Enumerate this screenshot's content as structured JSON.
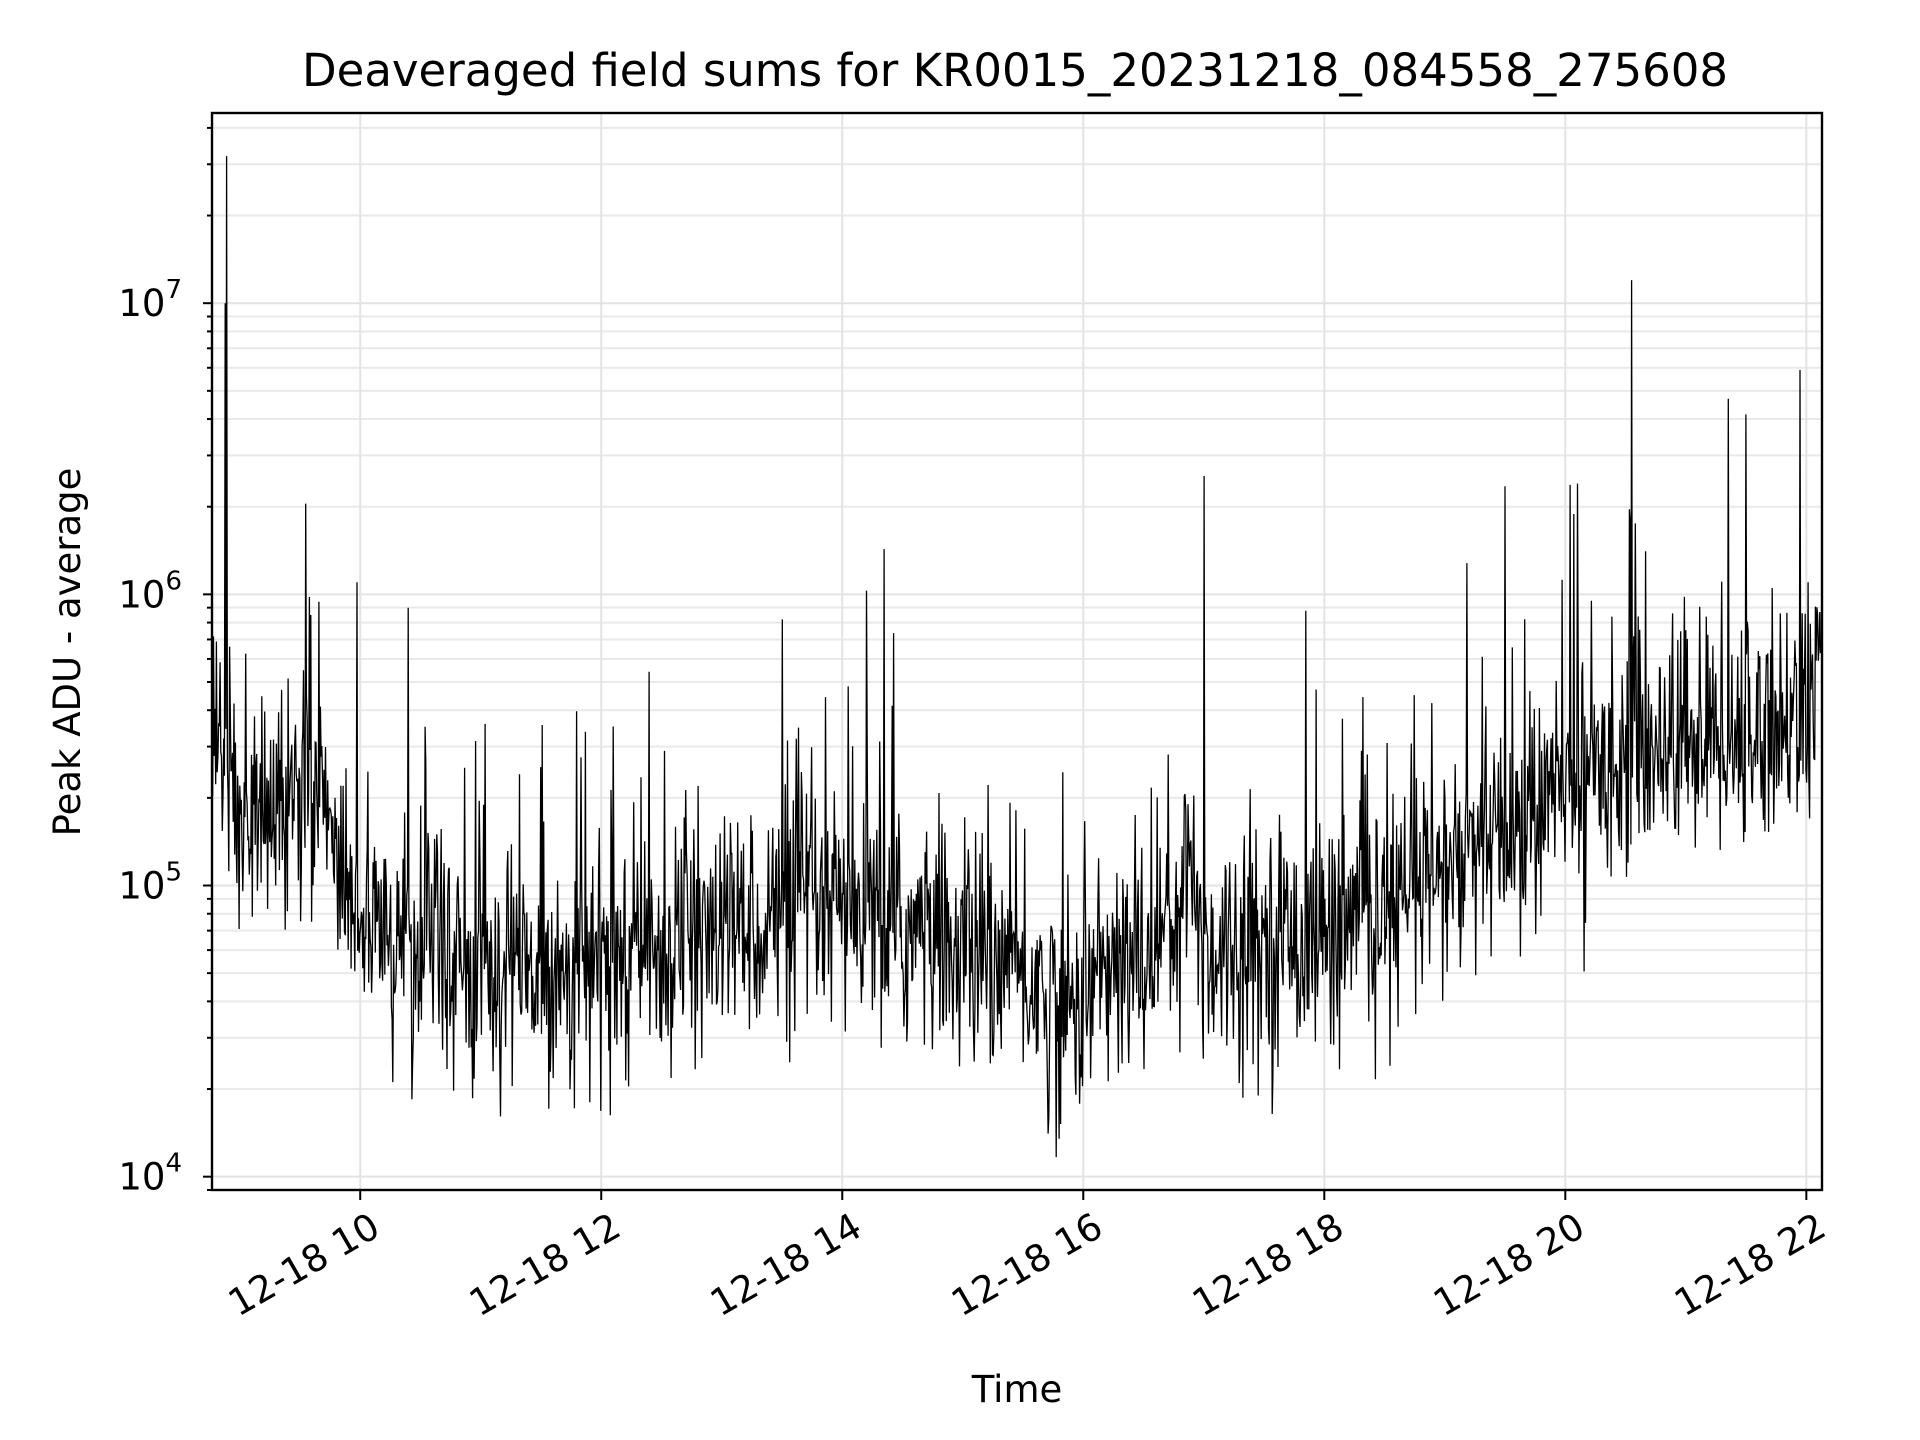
{
  "chart_data": {
    "type": "line",
    "title": "Deaveraged field sums for KR0015_20231218_084558_275608",
    "xlabel": "Time",
    "ylabel": "Peak ADU - average",
    "yscale": "log",
    "xlim_hours": [
      8.77,
      22.13
    ],
    "ylim": [
      9000,
      45000000
    ],
    "grid": true,
    "x_ticks": [
      {
        "hour": 10,
        "label": "12-18 10"
      },
      {
        "hour": 12,
        "label": "12-18 12"
      },
      {
        "hour": 14,
        "label": "12-18 14"
      },
      {
        "hour": 16,
        "label": "12-18 16"
      },
      {
        "hour": 18,
        "label": "12-18 18"
      },
      {
        "hour": 20,
        "label": "12-18 20"
      },
      {
        "hour": 22,
        "label": "12-18 22"
      }
    ],
    "y_ticks": [
      {
        "value": 10000,
        "base": "10",
        "exp": "4"
      },
      {
        "value": 100000,
        "base": "10",
        "exp": "5"
      },
      {
        "value": 1000000,
        "base": "10",
        "exp": "6"
      },
      {
        "value": 10000000,
        "base": "10",
        "exp": "7"
      }
    ],
    "series": [
      {
        "name": "Peak ADU - average",
        "color": "#000000",
        "x_hours": [
          8.77,
          8.9,
          9.0,
          9.25,
          9.5,
          9.75,
          10.0,
          10.5,
          11.0,
          11.5,
          12.0,
          12.5,
          13.0,
          13.5,
          14.0,
          14.5,
          15.0,
          15.5,
          15.85,
          16.0,
          16.5,
          16.9,
          17.0,
          17.5,
          18.0,
          18.5,
          19.0,
          19.5,
          20.0,
          20.5,
          21.0,
          21.5,
          22.0,
          22.13
        ],
        "y_median": [
          350000,
          260000,
          160000,
          180000,
          200000,
          170000,
          75000,
          60000,
          55000,
          50000,
          55000,
          60000,
          70000,
          80000,
          80000,
          70000,
          60000,
          50000,
          35000,
          45000,
          55000,
          110000,
          60000,
          65000,
          70000,
          80000,
          110000,
          150000,
          220000,
          300000,
          320000,
          330000,
          400000,
          520000
        ],
        "spikes": [
          {
            "hour": 8.89,
            "value": 32000000
          },
          {
            "hour": 8.88,
            "value": 10000000
          },
          {
            "hour": 9.55,
            "value": 2050000
          },
          {
            "hour": 9.97,
            "value": 1100000
          },
          {
            "hour": 10.4,
            "value": 900000
          },
          {
            "hour": 13.5,
            "value": 820000
          },
          {
            "hour": 14.2,
            "value": 1030000
          },
          {
            "hour": 14.35,
            "value": 1430000
          },
          {
            "hour": 17.0,
            "value": 2550000
          },
          {
            "hour": 19.5,
            "value": 2350000
          },
          {
            "hour": 20.1,
            "value": 2400000
          },
          {
            "hour": 20.55,
            "value": 12000000
          },
          {
            "hour": 21.35,
            "value": 4700000
          },
          {
            "hour": 21.5,
            "value": 4150000
          },
          {
            "hour": 21.95,
            "value": 5900000
          }
        ]
      }
    ]
  }
}
